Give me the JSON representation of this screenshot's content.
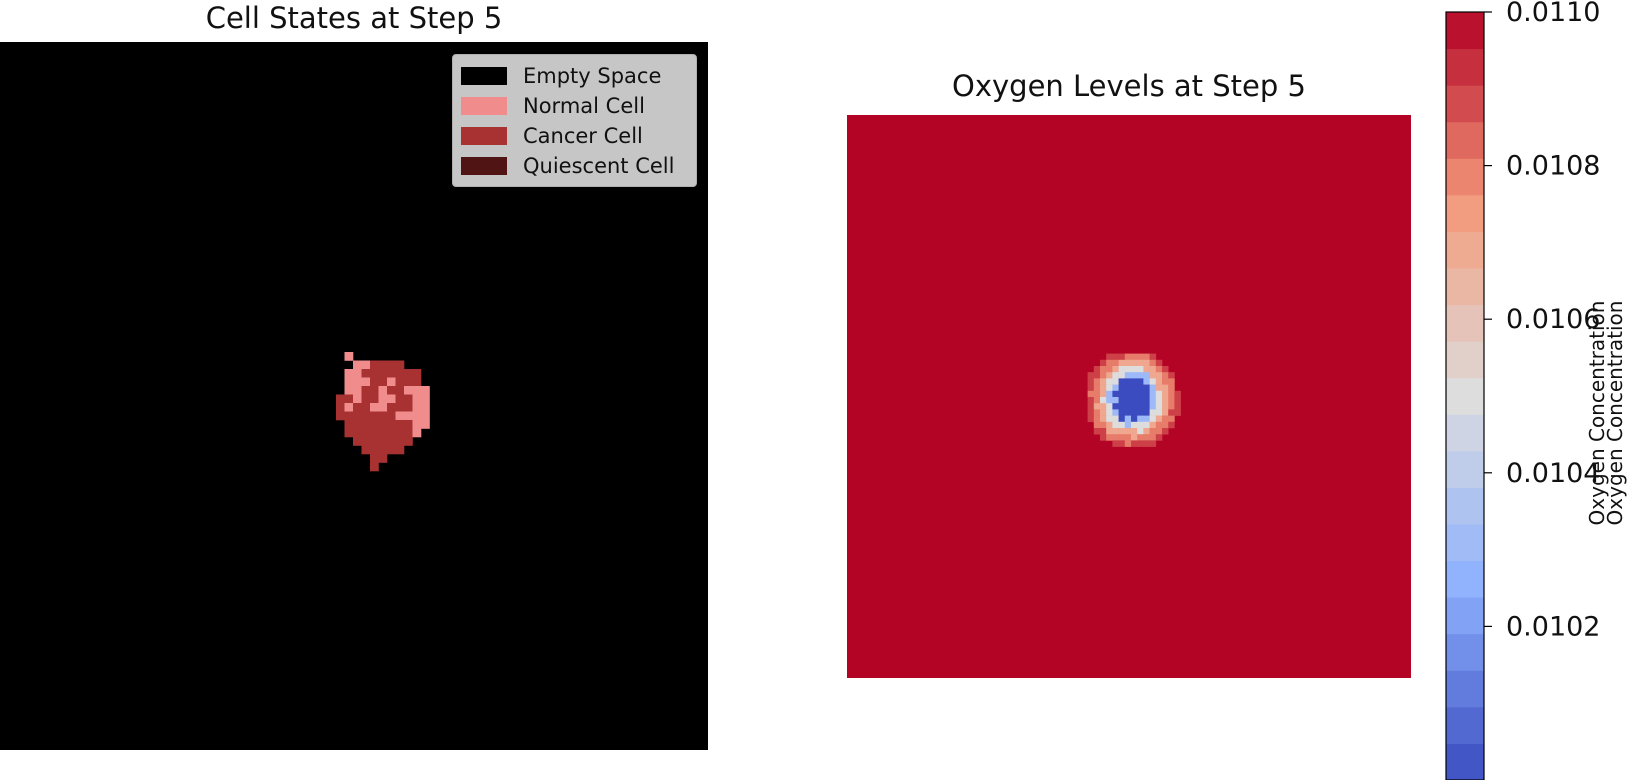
{
  "chart_data": [
    {
      "type": "heatmap",
      "title": "Cell States at Step 5",
      "legend": {
        "placement": "top-right",
        "entries": [
          {
            "label": "Empty Space",
            "color": "#000000"
          },
          {
            "label": "Normal Cell",
            "color": "#f08c8c"
          },
          {
            "label": "Cancer Cell",
            "color": "#a83232"
          },
          {
            "label": "Quiescent Cell",
            "color": "#501414"
          }
        ]
      },
      "grid": false,
      "axes_visible": false,
      "background_state": "Empty Space",
      "cluster_rows": [
        "..........................................",
        "..........................................",
        ".....N....................................",
        "......NNCCCC..............................",
        ".....NNCCCCCCC............................",
        ".....NNNCCNCCC............................",
        ".....NNCCNCCNNN...........................",
        "....CCNCCNNCCNN...........................",
        "....CNCCNNCCCNN...........................",
        "....CCCCCCCNNNN...........................",
        ".....CCCCCCCCNN...........................",
        ".....CCCCCCCCN............................",
        "......CCCCCCC.............................",
        ".......CCCCC..............................",
        "........CC................................",
        "........C................................."
      ],
      "cluster_legend": {
        "N": "Normal Cell",
        "C": "Cancer Cell",
        ".": "Empty Space"
      }
    },
    {
      "type": "heatmap",
      "title": "Oxygen Levels at Step 5",
      "grid": false,
      "axes_visible": false,
      "background_value": 0.011,
      "hypoxic_region": {
        "core_value": 0.01,
        "ring_values": [
          0.0103,
          0.0105,
          0.0107,
          0.0108,
          0.0109
        ]
      },
      "colorbar": {
        "label": "Oxygen Concentration",
        "label_repeat": "Oxygen Concentration",
        "colormap": "coolwarm",
        "range": [
          0.01,
          0.011
        ],
        "ticks": [
          0.0102,
          0.0104,
          0.0106,
          0.0108,
          0.011
        ],
        "tick_labels": [
          "0.0102",
          "0.0104",
          "0.0106",
          "0.0108",
          "0.0110"
        ],
        "bands": 21
      }
    }
  ]
}
